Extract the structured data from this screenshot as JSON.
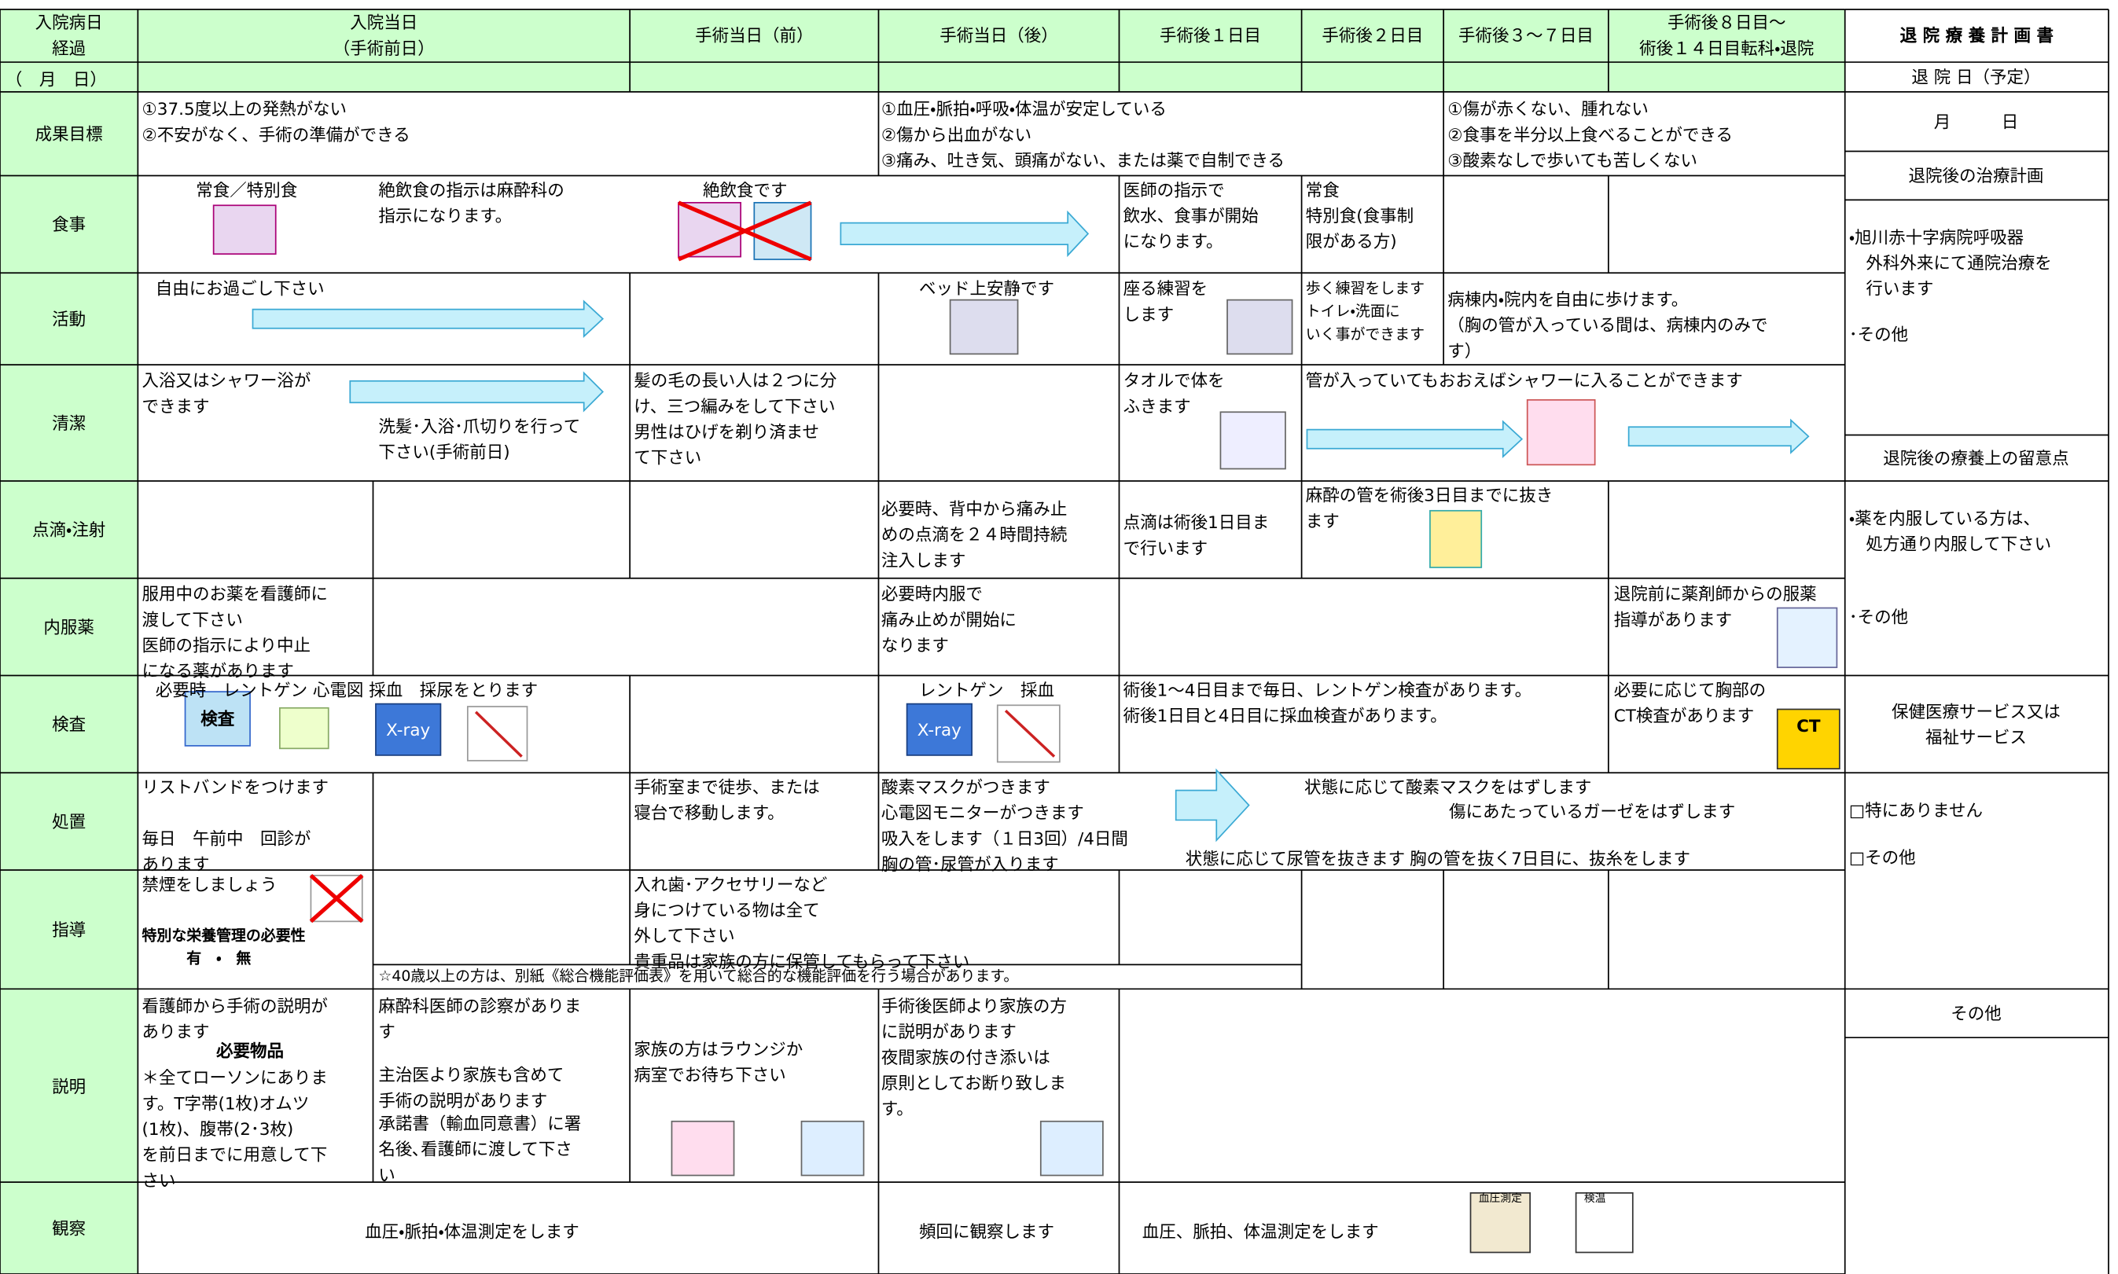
{
  "header": {
    "columns": [
      "入院病日\n経過",
      "入院当日\n（手術前日）",
      "手術当日（前）",
      "手術当日（後）",
      "手術後１日目",
      "手術後２日目",
      "手術後３～７日目",
      "手術後８日目～\n術後１４日目転科・退院",
      "退 院 療 養 計 画 書"
    ],
    "date_row": "（　月　日）"
  },
  "rows": [
    {
      "label": "成果目標",
      "texts": [
        "①37.5度以上の発熱がない\n②不安がなく、手術の準備ができる",
        "①血圧・脈拍・呼吸・体温が安定している\n②傷から出血がない\n③痛み、吐き気、頭痛がない、または薬で自制できる",
        "①傷が赤くない、腫れない\n②食事を半分以上食べることができる\n③酸素なしで歩いても苦しくない"
      ]
    },
    {
      "label": "食事",
      "texts": [
        "常食／特別食",
        "絶飲食の指示は麻酔科の\n指示になります。",
        "絶飲食です",
        "医師の指示で\n飲水、食事が開始\nになります。",
        "常食\n特別食(食事制\n限がある方)"
      ]
    },
    {
      "label": "活動",
      "texts": [
        "自由にお過ごし下さい",
        "ベッド上安静です",
        "座る練習を\nします",
        "歩く練習をします\nトイレ・洗面に\nいく事ができます",
        "病棟内・院内を自由に歩けます。\n（胸の管が入っている間は、病棟内のみで\nす）"
      ]
    },
    {
      "label": "清潔",
      "texts": [
        "入浴又はシャワー浴が\nできます",
        "洗髪･入浴･爪切りを行って\n下さい(手術前日)",
        "髪の毛の長い人は２つに分\nけ、三つ編みをして下さい\n男性はひげを剃り済ませ\nて下さい",
        "タオルで体を\nふきます",
        "管が入っていてもおおえばシャワーに入ることができます"
      ]
    },
    {
      "label": "点滴・注射",
      "texts": [
        "必要時、背中から痛み止\nめの点滴を２４時間持続\n注入します",
        "点滴は術後1日目ま\nで行います",
        "麻酔の管を術後3日目までに抜き\nます"
      ]
    },
    {
      "label": "内服薬",
      "texts": [
        "服用中のお薬を看護師に\n渡して下さい\n医師の指示により中止\nになる薬があります",
        "必要時内服で\n痛み止めが開始に\nなります",
        "退院前に薬剤師からの服薬\n指導があります"
      ]
    },
    {
      "label": "検査",
      "texts": [
        "必要時　レントゲン 心電図 採血　採尿をとります",
        "レントゲン　採血",
        "術後1～4日目まで毎日、レントゲン検査があります。\n術後1日目と4日目に採血検査があります。",
        "必要に応じて胸部の\nCT検査があります"
      ]
    },
    {
      "label": "処置",
      "texts": [
        "リストバンドをつけます\n\n毎日　午前中　回診が\nあります",
        "手術室まで徒歩、または\n寝台で移動します。",
        "酸素マスクがつきます\n心電図モニターがつきます\n吸入をします（１日3回）/4日間\n胸の管･尿管が入ります",
        "状態に応じて酸素マスクをはずします",
        "傷にあたっているガーゼをはずします",
        "状態に応じて尿管を抜きます",
        "胸の管を抜く7日目に、抜糸をします"
      ]
    },
    {
      "label": "指導",
      "texts": [
        "禁煙をしましょう",
        "特別な栄養管理の必要性\n　　　有　・　無",
        "入れ歯･アクセサリーなど\n身につけている物は全て\n外して下さい\n貴重品は家族の方に保管してもらって下さい",
        "☆40歳以上の方は、別紙《総合機能評価表》を用いて総合的な機能評価を行う場合があります。"
      ]
    },
    {
      "label": "説明",
      "texts": [
        "看護師から手術の説明が\nあります",
        "必要物品",
        "＊全てローソンにありま\nす。T字帯(1枚)オムツ\n(1枚)、腹帯(2･3枚)\nを前日までに用意して下\nさい",
        "麻酔科医師の診察がありま\nす",
        "主治医より家族も含めて\n手術の説明があります",
        "承諾書（輸血同意書）に署\n名後､看護師に渡して下さ\nい",
        "家族の方はラウンジか\n病室でお待ち下さい",
        "手術後医師より家族の方\nに説明があります\n夜間家族の付き添いは\n原則としてお断り致しま\nす。"
      ]
    },
    {
      "label": "観察",
      "texts": [
        "血圧・脈拍・体温測定をします",
        "頻回に観察します",
        "血圧、脈拍、体温測定をします"
      ]
    }
  ],
  "discharge_plan": {
    "discharge_date_label": "退 院 日（予定）",
    "date": "月　　　日",
    "treatment_plan_title": "退院後の治療計画",
    "treatment_plan": [
      "・旭川赤十字病院呼吸器\n　外科外来にて通院治療を\n　行います",
      "･その他"
    ],
    "care_notes_title": "退院後の療養上の留意点",
    "care_notes": [
      "・薬を内服している方は、\n　処方通り内服して下さい",
      "･その他"
    ],
    "services_title": "保健医療サービス又は\n福祉サービス",
    "services": [
      "□特にありません",
      "□その他"
    ],
    "other_title": "その他"
  },
  "icons": {
    "exam": "検査",
    "xray_1": "X-ray",
    "xray_2": "X-ray",
    "ct": "CT",
    "bp": "血圧測定",
    "temp": "検温"
  }
}
